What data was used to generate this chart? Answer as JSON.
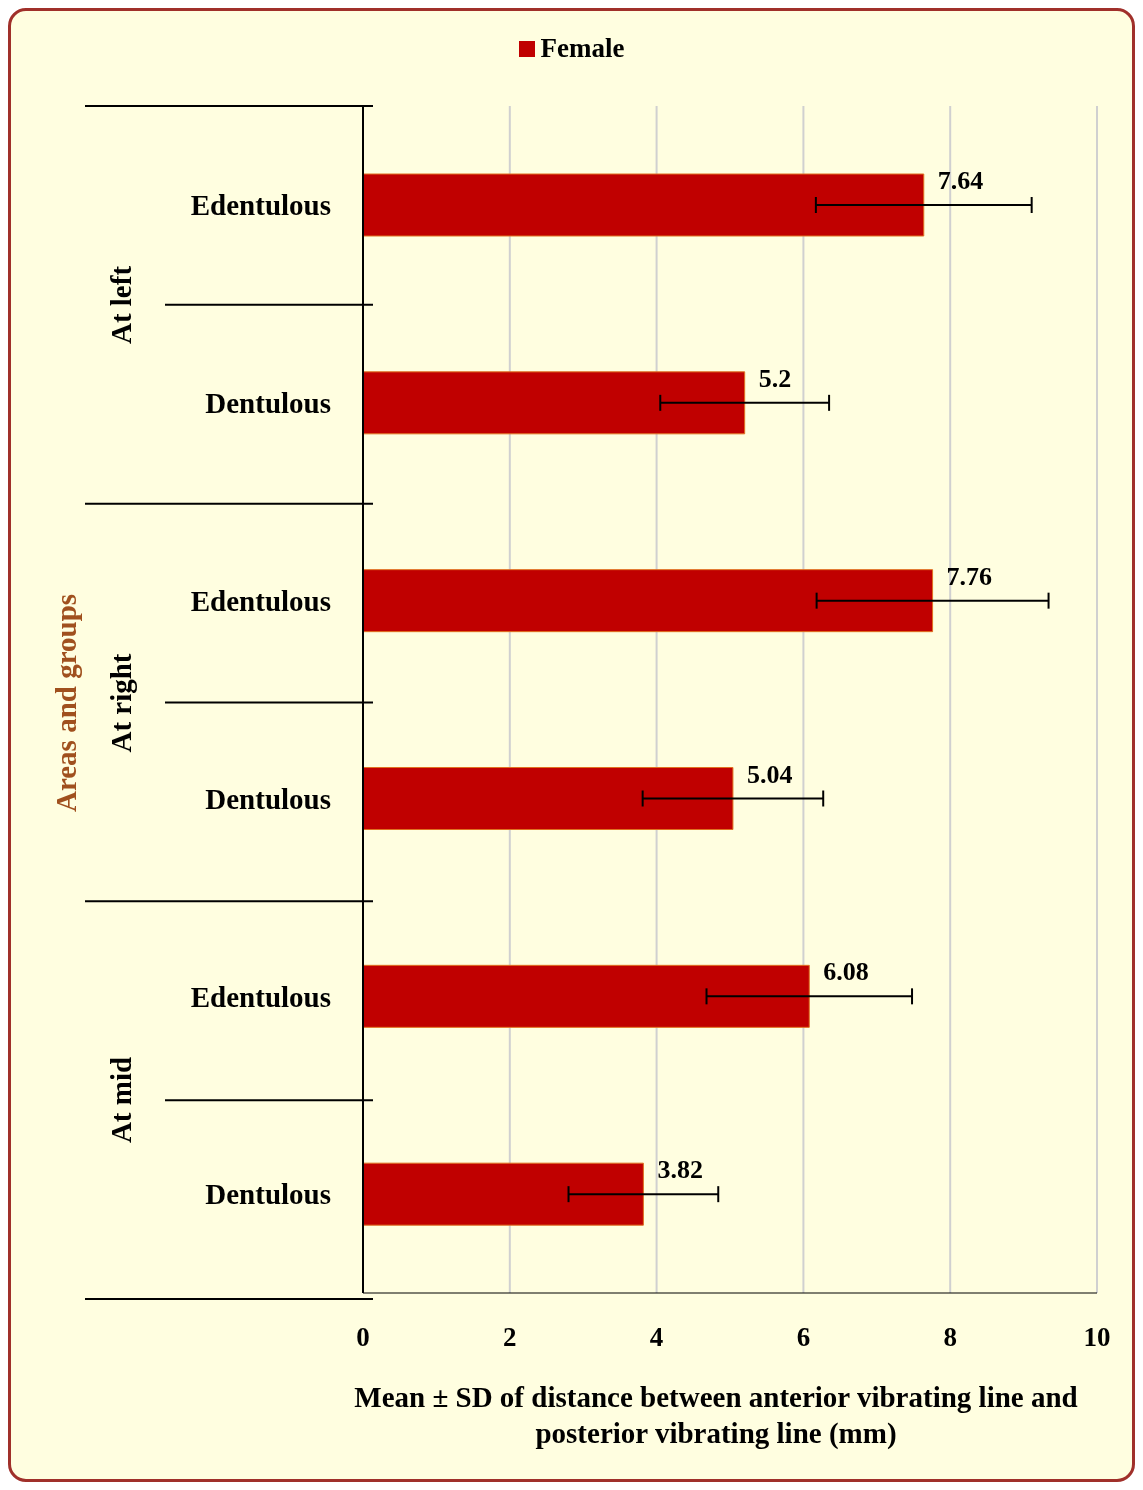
{
  "chart_data": {
    "type": "bar",
    "orientation": "horizontal",
    "xlabel": "Mean ± SD of distance between anterior vibrating line and posterior vibrating line (mm)",
    "ylabel": "Areas and groups",
    "categories": [
      "Edentulous",
      "Dentulous",
      "Edentulous",
      "Dentulous",
      "Edentulous",
      "Dentulous"
    ],
    "series": [
      {
        "name": "Female",
        "color": "#c00000",
        "values": [
          7.64,
          5.2,
          7.76,
          5.04,
          6.08,
          3.82
        ],
        "errors": [
          1.47,
          1.15,
          1.58,
          1.23,
          1.4,
          1.02
        ]
      }
    ],
    "annotations": [
      "At left",
      "At right",
      "At mid"
    ],
    "xlim": [
      0,
      10
    ],
    "xticks": [
      0,
      2,
      4,
      6,
      8,
      10
    ],
    "grid": "x",
    "legend": "top",
    "data_labels": true
  }
}
